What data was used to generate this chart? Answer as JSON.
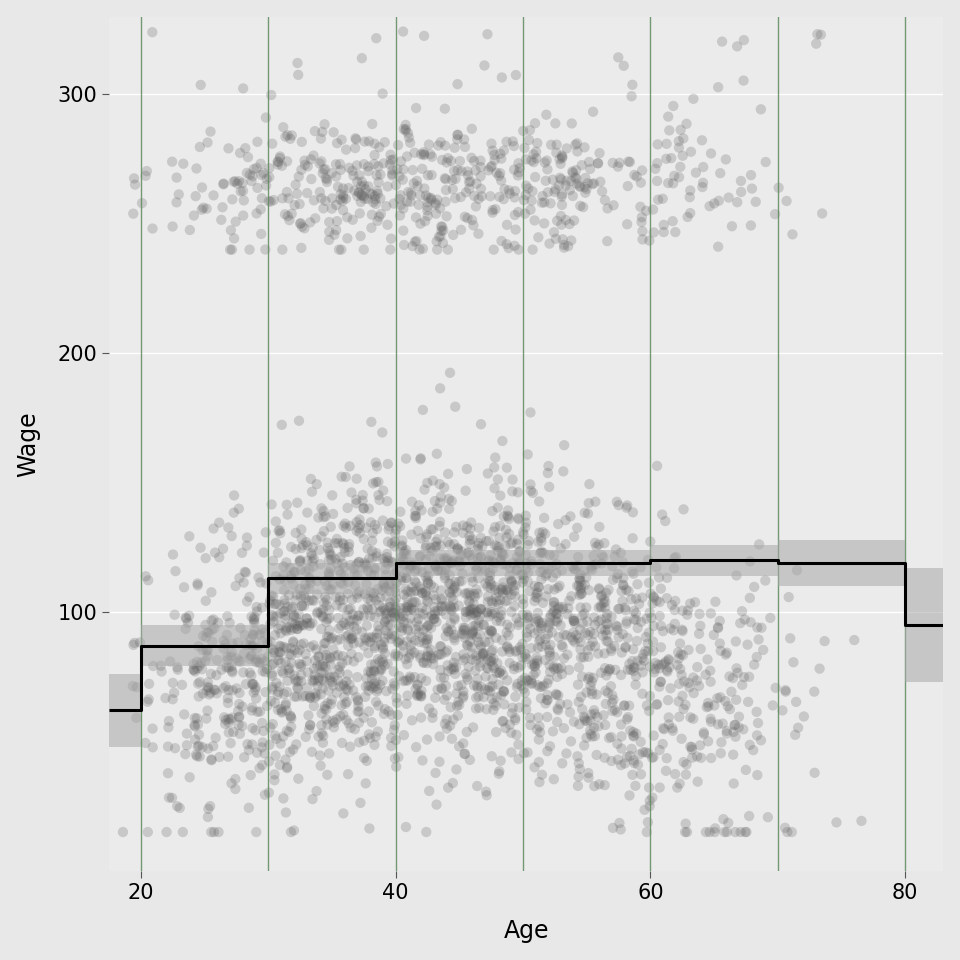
{
  "title": "",
  "xlabel": "Age",
  "ylabel": "Wage",
  "xlim": [
    17.5,
    83
  ],
  "ylim": [
    0,
    330
  ],
  "yticks": [
    100,
    200,
    300
  ],
  "xticks": [
    20,
    40,
    60,
    80
  ],
  "background_color": "#E8E8E8",
  "panel_color": "#EBEBEB",
  "grid_color": "#FFFFFF",
  "scatter_color": "#606060",
  "scatter_alpha": 0.25,
  "scatter_size": 55,
  "bin_boundaries": [
    20,
    30,
    40,
    50,
    60,
    70,
    80
  ],
  "vline_color": "#5F8A5F",
  "vline_alpha": 0.85,
  "step_color": "#000000",
  "step_linewidth": 2.2,
  "ci_color": "#A8A8A8",
  "ci_alpha": 0.55,
  "step_x": [
    17.5,
    20,
    20,
    30,
    30,
    40,
    40,
    60,
    60,
    70,
    70,
    80,
    80,
    83
  ],
  "step_y": [
    62,
    62,
    87,
    87,
    113,
    113,
    119,
    119,
    120,
    120,
    119,
    119,
    95,
    95
  ],
  "ci_upper": [
    76,
    76,
    95,
    95,
    119,
    119,
    124,
    124,
    126,
    126,
    128,
    128,
    117,
    117
  ],
  "ci_lower": [
    48,
    48,
    79,
    79,
    107,
    107,
    114,
    114,
    114,
    114,
    110,
    110,
    73,
    73
  ],
  "seed": 42,
  "n_points": 3000
}
